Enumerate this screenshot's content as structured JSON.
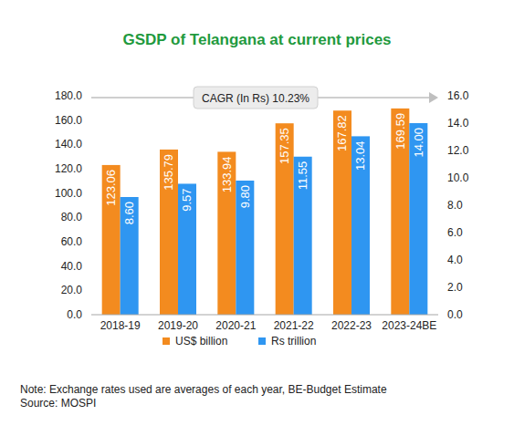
{
  "chart_data": {
    "type": "bar",
    "title": "GSDP of Telangana at current prices",
    "annotations": [
      "CAGR (In Rs) 10.23%"
    ],
    "note": "Note: Exchange rates used are averages of each year, BE-Budget Estimate",
    "source": "Source: MOSPI",
    "categories": [
      "2018-19",
      "2019-20",
      "2020-21",
      "2021-22",
      "2022-23",
      "2023-24BE"
    ],
    "series": [
      {
        "name": "US$ billion",
        "color": "#f38b1f",
        "values": [
          123.06,
          135.79,
          133.94,
          157.35,
          167.82,
          169.59
        ],
        "value_labels": [
          "123.06",
          "135.79",
          "133.94",
          "157.35",
          "167.82",
          "169.59"
        ]
      },
      {
        "name": "Rs trillion",
        "color": "#2f96f1",
        "axis": "y2",
        "values": [
          8.6,
          9.57,
          9.8,
          11.55,
          13.04,
          14
        ],
        "value_labels": [
          "8.60",
          "9.57",
          "9.80",
          "11.55",
          "13.04",
          "14.00"
        ]
      }
    ],
    "ylim": [
      0,
      180
    ],
    "yticks": [
      {
        "value": 0,
        "label": "0.0"
      },
      {
        "value": 20,
        "label": "20.0"
      },
      {
        "value": 40,
        "label": "40.0"
      },
      {
        "value": 60,
        "label": "60.0"
      },
      {
        "value": 80,
        "label": "80.0"
      },
      {
        "value": 100,
        "label": "100.0"
      },
      {
        "value": 120,
        "label": "120.0"
      },
      {
        "value": 140,
        "label": "140.0"
      },
      {
        "value": 160,
        "label": "160.0"
      },
      {
        "value": 180,
        "label": "180.0"
      }
    ],
    "y2lim": [
      0,
      16
    ],
    "y2ticks": [
      {
        "value": 0,
        "label": "0.0"
      },
      {
        "value": 2,
        "label": "2.0"
      },
      {
        "value": 4,
        "label": "4.0"
      },
      {
        "value": 6,
        "label": "6.0"
      },
      {
        "value": 8,
        "label": "8.0"
      },
      {
        "value": 10,
        "label": "10.0"
      },
      {
        "value": 12,
        "label": "12.0"
      },
      {
        "value": 14,
        "label": "14.0"
      },
      {
        "value": 16,
        "label": "16.0"
      }
    ],
    "grid": false,
    "data_labels": true,
    "legend": "bottom"
  }
}
